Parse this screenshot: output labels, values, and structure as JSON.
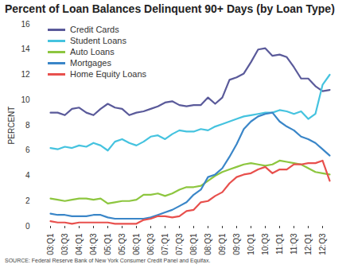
{
  "chart_data": {
    "type": "line",
    "title": "Percent of Loan Balances Delinquent 90+ Days (by Loan Type)",
    "ylabel": "PERCENT",
    "source": "SOURCE: Federal Reserve Bank of New York Consumer Credit Panel and Equifax.",
    "categories": [
      "03:Q1",
      null,
      "03:Q3",
      null,
      "04:Q1",
      null,
      "04:Q3",
      null,
      "05:Q1",
      null,
      "05:Q3",
      null,
      "06:Q1",
      null,
      "06:Q3",
      null,
      "07:Q1",
      null,
      "07:Q3",
      null,
      "08:Q1",
      null,
      "08:Q3",
      null,
      "09:Q1",
      null,
      "09:Q3",
      null,
      "10:Q1",
      null,
      "10:Q3",
      null,
      "11:Q1",
      null,
      "11:Q3",
      null,
      "12:Q1",
      null,
      "12:Q3",
      null
    ],
    "series": [
      {
        "name": "Credit Cards",
        "color": "#5a5a9a",
        "values": [
          9.0,
          9.0,
          8.8,
          9.3,
          9.4,
          9.0,
          8.8,
          9.3,
          9.7,
          9.4,
          9.3,
          8.8,
          9.0,
          9.1,
          9.3,
          9.5,
          9.8,
          9.9,
          9.6,
          9.5,
          9.6,
          9.6,
          10.2,
          9.7,
          10.2,
          11.6,
          11.8,
          12.1,
          13.0,
          14.0,
          14.1,
          13.5,
          13.6,
          13.4,
          12.6,
          11.7,
          11.7,
          11.1,
          10.7,
          10.8
        ]
      },
      {
        "name": "Student Loans",
        "color": "#45c3df",
        "values": [
          6.2,
          6.1,
          6.3,
          6.2,
          6.4,
          6.3,
          6.6,
          6.4,
          6.0,
          6.7,
          6.9,
          6.6,
          6.4,
          6.7,
          7.1,
          7.2,
          6.9,
          7.3,
          7.6,
          7.5,
          7.5,
          7.7,
          7.6,
          7.9,
          8.1,
          8.3,
          8.5,
          8.7,
          8.8,
          8.9,
          9.0,
          9.0,
          9.2,
          9.1,
          8.9,
          9.1,
          8.5,
          8.9,
          11.2,
          12.0
        ]
      },
      {
        "name": "Auto Loans",
        "color": "#8dc63f",
        "values": [
          2.2,
          2.1,
          2.0,
          2.1,
          2.2,
          2.2,
          2.1,
          2.2,
          1.8,
          1.9,
          2.0,
          2.0,
          2.1,
          2.5,
          2.5,
          2.6,
          2.4,
          2.6,
          2.9,
          3.1,
          3.1,
          3.2,
          3.6,
          4.0,
          4.3,
          4.5,
          4.7,
          4.9,
          5.0,
          4.9,
          4.8,
          4.9,
          5.2,
          5.1,
          5.0,
          4.9,
          4.6,
          4.3,
          4.2,
          4.1
        ]
      },
      {
        "name": "Mortgages",
        "color": "#3a86c8",
        "values": [
          1.0,
          0.9,
          0.9,
          0.8,
          0.8,
          0.8,
          0.9,
          0.9,
          0.7,
          0.6,
          0.6,
          0.6,
          0.6,
          0.6,
          0.7,
          0.9,
          1.1,
          1.3,
          1.6,
          1.9,
          2.5,
          2.9,
          3.9,
          4.1,
          4.6,
          5.5,
          6.5,
          7.7,
          8.3,
          8.7,
          8.9,
          9.0,
          8.3,
          7.9,
          7.6,
          7.1,
          6.9,
          6.6,
          6.1,
          5.6
        ]
      },
      {
        "name": "Home Equity Loans",
        "color": "#e8504d",
        "values": [
          0.4,
          0.3,
          0.3,
          0.2,
          0.3,
          0.3,
          0.3,
          0.3,
          0.3,
          0.2,
          0.2,
          0.2,
          0.2,
          0.5,
          0.6,
          0.8,
          0.8,
          0.7,
          0.8,
          1.2,
          1.3,
          1.9,
          2.0,
          2.4,
          2.7,
          3.4,
          3.9,
          4.1,
          4.2,
          4.5,
          4.7,
          4.2,
          4.5,
          4.5,
          4.9,
          4.9,
          5.0,
          5.0,
          5.2,
          3.6
        ]
      }
    ],
    "ylim": [
      0,
      16
    ],
    "yticks": [
      0,
      2,
      4,
      6,
      8,
      10,
      12,
      14,
      16
    ],
    "grid": false,
    "legend": "top-left"
  }
}
